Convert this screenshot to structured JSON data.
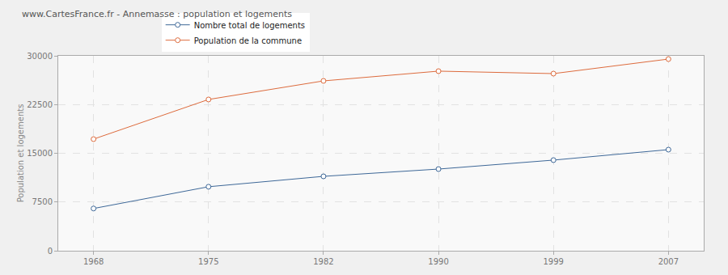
{
  "chart_data": {
    "type": "line",
    "title": "www.CartesFrance.fr - Annemasse : population et logements",
    "y_label": "Population et logements",
    "categories": [
      "1968",
      "1975",
      "1982",
      "1990",
      "1999",
      "2007"
    ],
    "series": [
      {
        "name": "Nombre total de logements",
        "color": "#3e6898",
        "values": [
          6500,
          9850,
          11450,
          12570,
          13950,
          15560
        ]
      },
      {
        "name": "Population de la commune",
        "color": "#dd6b3d",
        "values": [
          17180,
          23280,
          26140,
          27640,
          27260,
          29500
        ]
      }
    ],
    "ylim": [
      0,
      30000
    ],
    "yticks": [
      0,
      7500,
      15000,
      22500,
      30000
    ],
    "grid": true,
    "legend": "top",
    "marker": "circle"
  }
}
